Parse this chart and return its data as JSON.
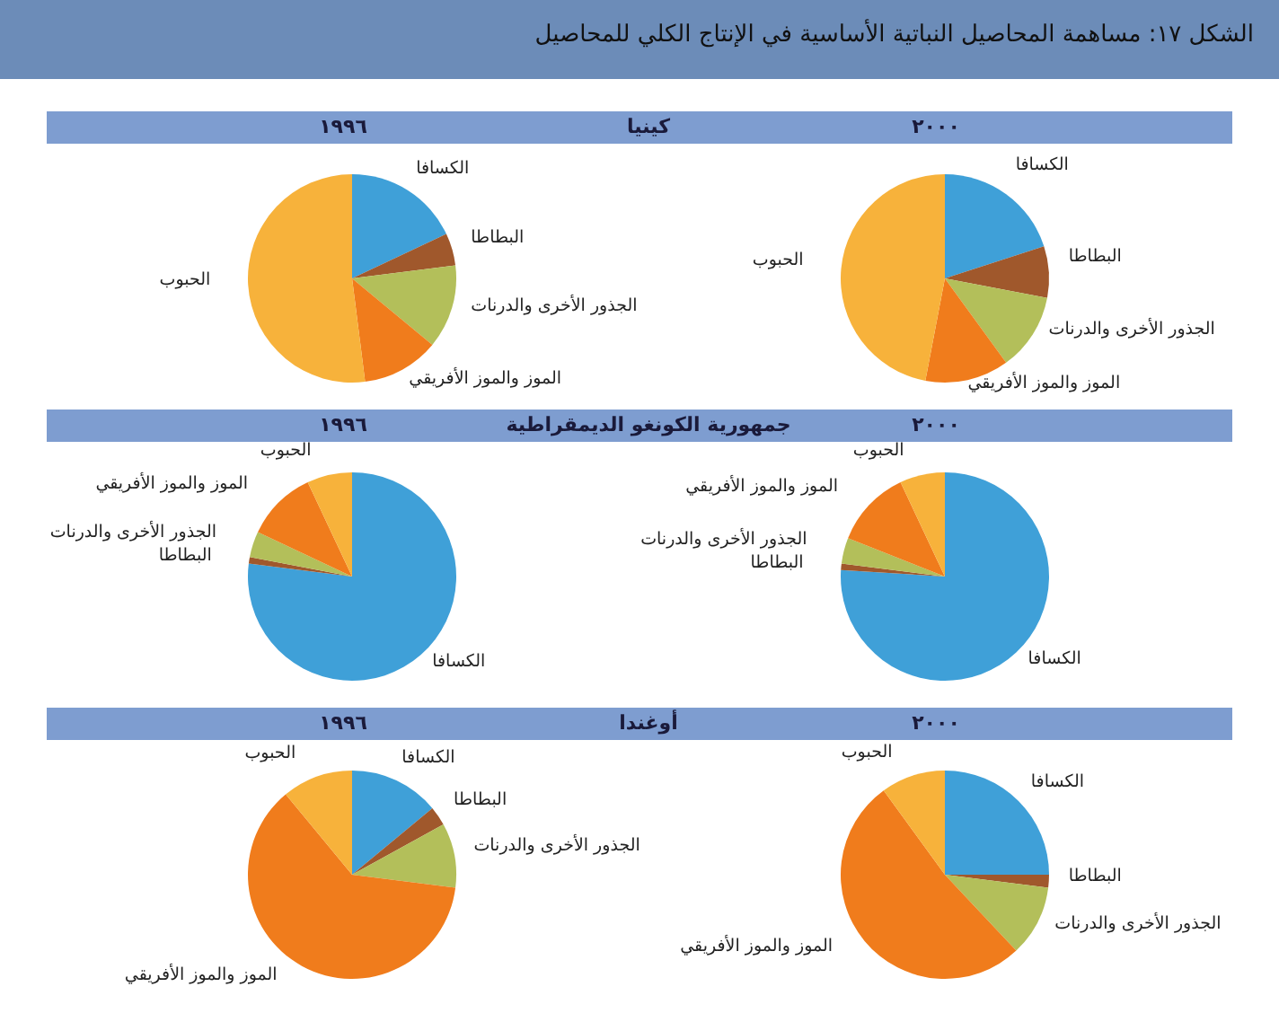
{
  "chart_data": [
    {
      "type": "pie",
      "title": "١٩٩٦",
      "subtitle": "كينيا",
      "annotations": [
        "الشكل ١٧: مساهمة المحاصيل النباتية الأساسية في الإنتاج الكلي للمحاصيل"
      ],
      "categories": [
        "الكسافا",
        "البطاطا",
        "الجذور الأخرى والدرنات",
        "الموز والموز الأفريقي",
        "الحبوب"
      ],
      "values": [
        18,
        5,
        13,
        12,
        52
      ],
      "colors": [
        "#3fa0d8",
        "#a0582c",
        "#b3bf5a",
        "#f07c1c",
        "#f7b23b"
      ]
    },
    {
      "type": "pie",
      "title": "٢٠٠٠",
      "categories": [
        "الكسافا",
        "البطاطا",
        "الجذور الأخرى والدرنات",
        "الموز والموز الأفريقي",
        "الحبوب"
      ],
      "values": [
        20,
        8,
        12,
        13,
        47
      ],
      "colors": [
        "#3fa0d8",
        "#a0582c",
        "#b3bf5a",
        "#f07c1c",
        "#f7b23b"
      ]
    },
    {
      "type": "pie",
      "title": "١٩٩٦",
      "subtitle": "جمهورية الكونغو الديمقراطية",
      "categories": [
        "الكسافا",
        "البطاطا",
        "الجذور الأخرى والدرنات",
        "الموز والموز الأفريقي",
        "الحبوب"
      ],
      "values": [
        77,
        1,
        4,
        11,
        7
      ],
      "colors": [
        "#3fa0d8",
        "#a0582c",
        "#b3bf5a",
        "#f07c1c",
        "#f7b23b"
      ]
    },
    {
      "type": "pie",
      "title": "٢٠٠٠",
      "categories": [
        "الكسافا",
        "البطاطا",
        "الجذور الأخرى والدرنات",
        "الموز والموز الأفريقي",
        "الحبوب"
      ],
      "values": [
        76,
        1,
        4,
        12,
        7
      ],
      "colors": [
        "#3fa0d8",
        "#a0582c",
        "#b3bf5a",
        "#f07c1c",
        "#f7b23b"
      ]
    },
    {
      "type": "pie",
      "title": "١٩٩٦",
      "subtitle": "أوغندا",
      "categories": [
        "الكسافا",
        "البطاطا",
        "الجذور الأخرى والدرنات",
        "الموز والموز الأفريقي",
        "الحبوب"
      ],
      "values": [
        14,
        3,
        10,
        62,
        11
      ],
      "colors": [
        "#3fa0d8",
        "#a0582c",
        "#b3bf5a",
        "#f07c1c",
        "#f7b23b"
      ]
    },
    {
      "type": "pie",
      "title": "٢٠٠٠",
      "categories": [
        "الكسافا",
        "البطاطا",
        "الجذور الأخرى والدرنات",
        "الموز والموز الأفريقي",
        "الحبوب"
      ],
      "values": [
        25,
        2,
        11,
        52,
        10
      ],
      "colors": [
        "#3fa0d8",
        "#a0582c",
        "#b3bf5a",
        "#f07c1c",
        "#f7b23b"
      ]
    }
  ]
}
